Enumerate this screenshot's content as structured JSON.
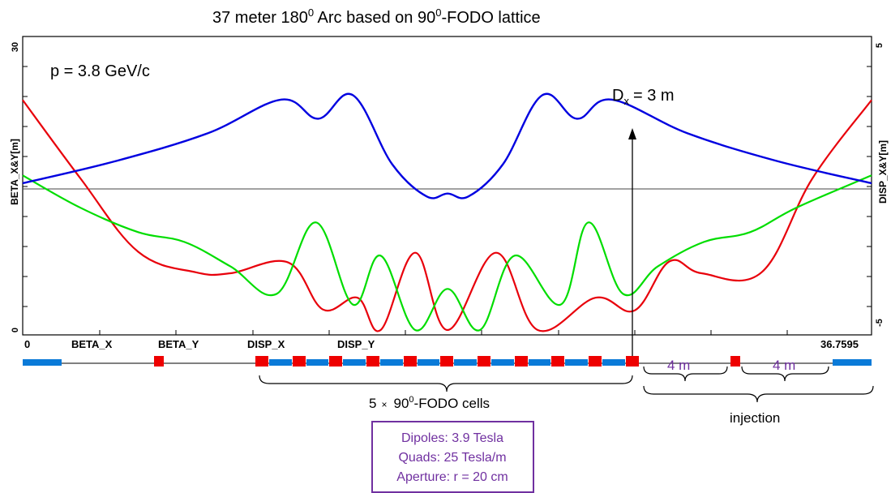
{
  "chart_data": {
    "type": "line",
    "title_main": "37 meter 180",
    "title_sup": "0",
    "title_rest": " Arc based on 90",
    "title_sup2": "0",
    "title_end": "-FODO lattice",
    "annotation_momentum": "p = 3.8 GeV/c",
    "annotation_dx_main": "D",
    "annotation_dx_sub": "x",
    "annotation_dx_rest": "= 3 m",
    "ylabel_left": "BETA_X&Y[m]",
    "ylabel_right": "DISP_X&Y[m]",
    "xlim": [
      0,
      36.7595
    ],
    "ylim_left": [
      0,
      30
    ],
    "ylim_right": [
      -5,
      5
    ],
    "left_ticks": [
      "0",
      "30"
    ],
    "right_ticks": [
      "-5",
      "5"
    ],
    "x_tick_start": "0",
    "x_tick_end": "36.7595",
    "legend": [
      "BETA_X",
      "BETA_Y",
      "DISP_X",
      "DISP_Y"
    ],
    "colors": {
      "beta_x": "#e8000b",
      "beta_y": "#00dd00",
      "disp_x": "#0000e0",
      "disp_y": "#000000",
      "dipole": "#ee0000",
      "quad": "#0a7ad8",
      "box": "#7030a0"
    },
    "series": [
      {
        "name": "BETA_X",
        "axis": "left",
        "x": [
          0,
          2.5,
          5,
          7.5,
          9.0,
          11.5,
          13,
          14.5,
          15.5,
          17,
          18.4,
          20.5,
          22.3,
          24.8,
          26.5,
          28,
          29.4,
          32,
          34.2,
          36.7595
        ],
        "y": [
          23.5,
          15.5,
          8,
          5.9,
          5.8,
          6.9,
          2.1,
          3.3,
          0.0,
          7.9,
          0.0,
          7.9,
          0.0,
          3.3,
          2.0,
          7.0,
          5.8,
          5.9,
          15.5,
          23.5
        ]
      },
      {
        "name": "BETA_Y",
        "axis": "left",
        "x": [
          0,
          2.5,
          5,
          7.0,
          9.0,
          11.0,
          12.7,
          14.3,
          15.5,
          17.0,
          18.4,
          19.8,
          21.3,
          23.3,
          24.5,
          26.0,
          27.5,
          29.5,
          31.5,
          33.5,
          36.7595
        ],
        "y": [
          15.8,
          12.5,
          10.0,
          9.0,
          6.5,
          3.7,
          11.0,
          2.6,
          7.6,
          0.0,
          4.2,
          0.0,
          7.6,
          2.6,
          11.0,
          3.7,
          6.5,
          9.0,
          10.0,
          12.5,
          15.8
        ]
      },
      {
        "name": "DISP_X",
        "axis": "right",
        "x": [
          0,
          4,
          8,
          11.2,
          12.8,
          14.3,
          16,
          17.5,
          18.4,
          19.3,
          20.8,
          22.5,
          24.0,
          25.5,
          28.8,
          32.7,
          36.7595
        ],
        "y": [
          0,
          0.75,
          1.7,
          2.85,
          2.2,
          3.0,
          0.65,
          -0.45,
          -0.35,
          -0.45,
          0.65,
          3.0,
          2.2,
          2.85,
          1.7,
          0.75,
          0
        ]
      }
    ]
  },
  "bottom": {
    "fodo_label_a": "5",
    "fodo_label_times": "×",
    "fodo_label_b": "90",
    "fodo_label_sup": "0",
    "fodo_label_c": "-FODO cells",
    "injection_label": "injection",
    "span_label_1": "4  m",
    "span_label_2": "4  m",
    "magnet_box_lines": [
      "Dipoles: 3.9 Tesla",
      "Quads: 25 Tesla/m",
      "Aperture: r = 20 cm"
    ]
  }
}
